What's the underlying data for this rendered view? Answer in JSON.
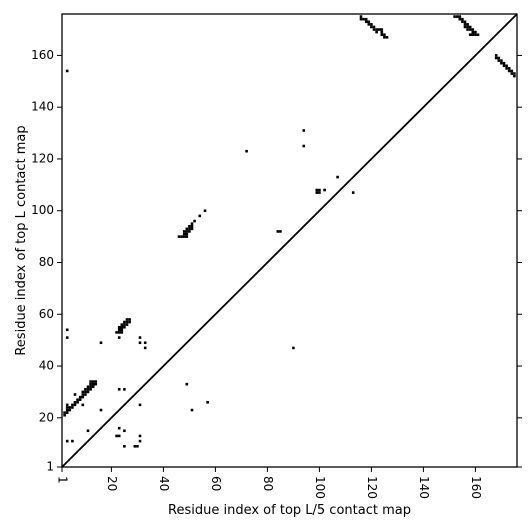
{
  "chart_data": {
    "type": "scatter",
    "title": "",
    "xlabel": "Residue index of top L/5 contact map",
    "ylabel": "Residue index of top L contact map",
    "xlim": [
      1,
      176
    ],
    "ylim": [
      1,
      176
    ],
    "x_ticks": [
      1,
      20,
      40,
      60,
      80,
      100,
      120,
      140,
      160
    ],
    "y_ticks": [
      1,
      20,
      40,
      60,
      80,
      100,
      120,
      140,
      160
    ],
    "x_tick_labels": [
      "1",
      "20",
      "40",
      "60",
      "80",
      "100",
      "120",
      "140",
      "160"
    ],
    "y_tick_labels": [
      "1",
      "20",
      "40",
      "60",
      "80",
      "100",
      "120",
      "140",
      "160"
    ],
    "diagonal": true,
    "grid": false,
    "marker": "square",
    "point_color": "#000000",
    "upper_triangle_points": [
      [
        116,
        175
      ],
      [
        117,
        174
      ],
      [
        118,
        174
      ],
      [
        118,
        173
      ],
      [
        119,
        173
      ],
      [
        120,
        172
      ],
      [
        119,
        172
      ],
      [
        120,
        171
      ],
      [
        121,
        171
      ],
      [
        121,
        170
      ],
      [
        122,
        170
      ],
      [
        123,
        170
      ],
      [
        124,
        170
      ],
      [
        124,
        169
      ],
      [
        122,
        169
      ],
      [
        124,
        168
      ],
      [
        125,
        168
      ],
      [
        125,
        167
      ],
      [
        126,
        167
      ],
      [
        116,
        174
      ],
      [
        152,
        175
      ],
      [
        153,
        175
      ],
      [
        154,
        175
      ],
      [
        154,
        174
      ],
      [
        155,
        174
      ],
      [
        155,
        173
      ],
      [
        156,
        173
      ],
      [
        156,
        172
      ],
      [
        157,
        172
      ],
      [
        157,
        171
      ],
      [
        158,
        171
      ],
      [
        158,
        170
      ],
      [
        159,
        170
      ],
      [
        159,
        169
      ],
      [
        160,
        169
      ],
      [
        158,
        168
      ],
      [
        159,
        168
      ],
      [
        160,
        168
      ],
      [
        161,
        168
      ],
      [
        156,
        171
      ],
      [
        157,
        170
      ],
      [
        168,
        160
      ],
      [
        168,
        159
      ],
      [
        169,
        159
      ],
      [
        169,
        158
      ],
      [
        170,
        158
      ],
      [
        170,
        157
      ],
      [
        171,
        157
      ],
      [
        171,
        156
      ],
      [
        172,
        156
      ],
      [
        172,
        155
      ],
      [
        173,
        155
      ],
      [
        173,
        154
      ],
      [
        174,
        154
      ],
      [
        174,
        153
      ],
      [
        175,
        153
      ],
      [
        175,
        152
      ],
      [
        46,
        90
      ],
      [
        47,
        90
      ],
      [
        48,
        90
      ],
      [
        48,
        91
      ],
      [
        49,
        91
      ],
      [
        48,
        92
      ],
      [
        49,
        92
      ],
      [
        50,
        92
      ],
      [
        49,
        93
      ],
      [
        50,
        93
      ],
      [
        51,
        93
      ],
      [
        50,
        94
      ],
      [
        51,
        94
      ],
      [
        51,
        95
      ],
      [
        52,
        96
      ],
      [
        54,
        98
      ],
      [
        56,
        100
      ],
      [
        49,
        90
      ],
      [
        99,
        108
      ],
      [
        100,
        108
      ],
      [
        99,
        107
      ],
      [
        100,
        107
      ],
      [
        102,
        108
      ],
      [
        107,
        113
      ],
      [
        113,
        107
      ],
      [
        94,
        131
      ],
      [
        94,
        125
      ],
      [
        72,
        123
      ],
      [
        84,
        92
      ],
      [
        85,
        92
      ],
      [
        3,
        154
      ]
    ],
    "lower_triangle_points": [
      [
        2,
        21
      ],
      [
        2,
        22
      ],
      [
        3,
        22
      ],
      [
        3,
        23
      ],
      [
        4,
        23
      ],
      [
        4,
        24
      ],
      [
        5,
        24
      ],
      [
        3,
        24
      ],
      [
        5,
        25
      ],
      [
        6,
        25
      ],
      [
        6,
        26
      ],
      [
        7,
        26
      ],
      [
        7,
        27
      ],
      [
        8,
        27
      ],
      [
        8,
        28
      ],
      [
        9,
        28
      ],
      [
        9,
        29
      ],
      [
        10,
        29
      ],
      [
        10,
        30
      ],
      [
        11,
        30
      ],
      [
        10,
        31
      ],
      [
        11,
        31
      ],
      [
        12,
        31
      ],
      [
        11,
        32
      ],
      [
        12,
        32
      ],
      [
        13,
        32
      ],
      [
        12,
        33
      ],
      [
        13,
        33
      ],
      [
        14,
        33
      ],
      [
        12,
        34
      ],
      [
        13,
        34
      ],
      [
        14,
        34
      ],
      [
        3,
        25
      ],
      [
        9,
        30
      ],
      [
        22,
        53
      ],
      [
        23,
        53
      ],
      [
        23,
        54
      ],
      [
        24,
        54
      ],
      [
        23,
        55
      ],
      [
        24,
        55
      ],
      [
        25,
        55
      ],
      [
        24,
        56
      ],
      [
        25,
        56
      ],
      [
        26,
        56
      ],
      [
        25,
        57
      ],
      [
        26,
        57
      ],
      [
        27,
        57
      ],
      [
        26,
        58
      ],
      [
        27,
        58
      ],
      [
        24,
        53
      ],
      [
        3,
        54
      ],
      [
        3,
        51
      ],
      [
        16,
        49
      ],
      [
        31,
        51
      ],
      [
        31,
        49
      ],
      [
        33,
        49
      ],
      [
        33,
        47
      ],
      [
        23,
        51
      ],
      [
        6,
        29
      ],
      [
        9,
        25
      ],
      [
        16,
        23
      ],
      [
        23,
        31
      ],
      [
        25,
        31
      ],
      [
        31,
        25
      ],
      [
        3,
        11
      ],
      [
        5,
        11
      ],
      [
        11,
        15
      ],
      [
        23,
        16
      ],
      [
        31,
        13
      ],
      [
        31,
        11
      ],
      [
        30,
        9
      ],
      [
        29,
        9
      ],
      [
        25,
        9
      ],
      [
        25,
        15
      ],
      [
        23,
        13
      ],
      [
        22,
        13
      ],
      [
        49,
        33
      ],
      [
        51,
        23
      ],
      [
        57,
        26
      ],
      [
        90,
        47
      ]
    ]
  }
}
